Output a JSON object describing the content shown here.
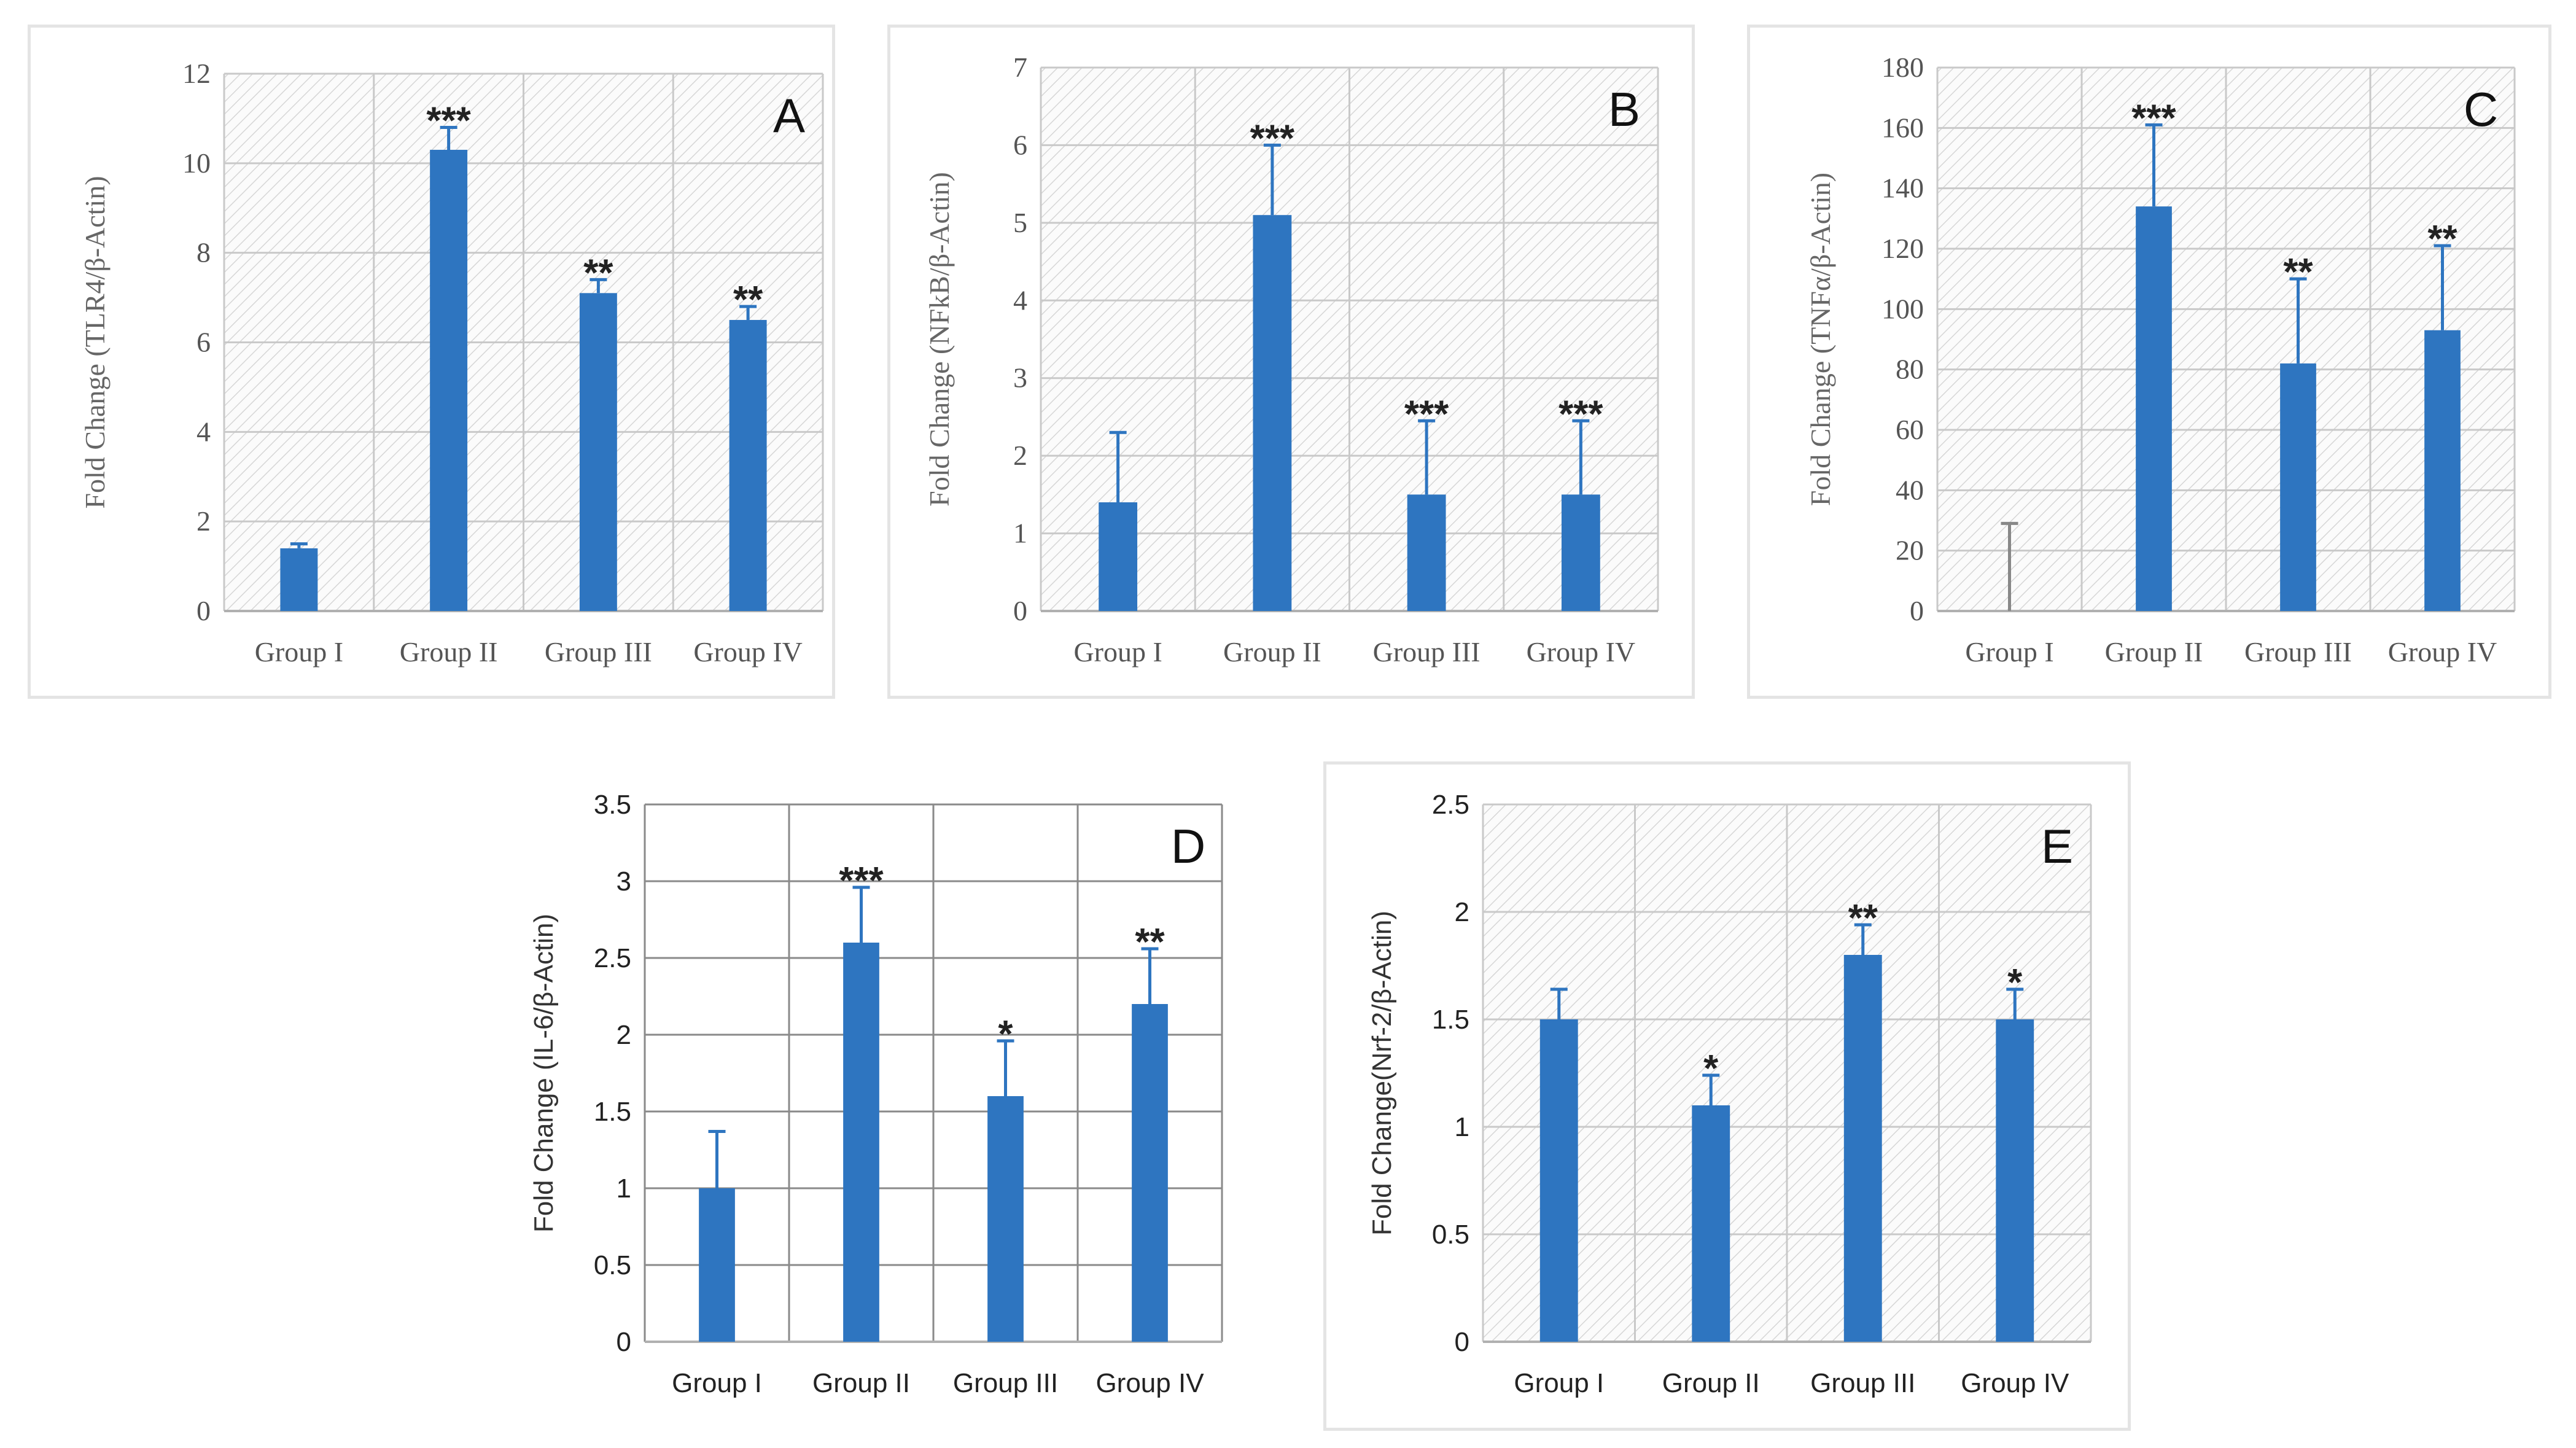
{
  "chart_data": [
    {
      "id": "A",
      "type": "bar",
      "title": "A",
      "categories": [
        "Group I",
        "Group II",
        "Group III",
        "Group IV"
      ],
      "values": [
        1.4,
        10.3,
        7.1,
        6.5
      ],
      "errors": [
        0.1,
        0.5,
        0.3,
        0.3
      ],
      "significance": [
        "",
        "***",
        "**",
        "**"
      ],
      "xlabel": "",
      "ylabel": "Fold Change (TLR4/β-Actin)",
      "ylim": [
        0,
        12
      ],
      "yticks": [
        "0",
        "2",
        "4",
        "6",
        "8",
        "10",
        "12"
      ],
      "grid": true
    },
    {
      "id": "B",
      "type": "bar",
      "title": "B",
      "categories": [
        "Group I",
        "Group II",
        "Group III",
        "Group IV"
      ],
      "values": [
        1.4,
        5.1,
        1.5,
        1.5
      ],
      "errors": [
        0.9,
        0.9,
        0.95,
        0.95
      ],
      "significance": [
        "",
        "***",
        "***",
        "***"
      ],
      "xlabel": "",
      "ylabel": "Fold Change (NFkB/β-Actin)",
      "ylim": [
        0,
        7
      ],
      "yticks": [
        "0",
        "1",
        "2",
        "3",
        "4",
        "5",
        "6",
        "7"
      ],
      "grid": true
    },
    {
      "id": "C",
      "type": "bar",
      "title": "C",
      "categories": [
        "Group I",
        "Group II",
        "Group III",
        "Group IV"
      ],
      "values": [
        0,
        134,
        82,
        93
      ],
      "errors": [
        29,
        27,
        28,
        28
      ],
      "significance": [
        "",
        "***",
        "**",
        "**"
      ],
      "xlabel": "",
      "ylabel": "Fold Change (TNFα/β-Actin)",
      "ylim": [
        0,
        180
      ],
      "yticks": [
        "0",
        "20",
        "40",
        "60",
        "80",
        "100",
        "120",
        "140",
        "160",
        "180"
      ],
      "grid": true
    },
    {
      "id": "D",
      "type": "bar",
      "title": "D",
      "categories": [
        "Group I",
        "Group II",
        "Group III",
        "Group IV"
      ],
      "values": [
        1.0,
        2.6,
        1.6,
        2.2
      ],
      "errors": [
        0.37,
        0.36,
        0.36,
        0.36
      ],
      "significance": [
        "",
        "***",
        "*",
        "**"
      ],
      "xlabel": "",
      "ylabel": "Fold Change (IL-6/β-Actin)",
      "ylim": [
        0,
        3.5
      ],
      "yticks": [
        "0",
        "0.5",
        "1",
        "1.5",
        "2",
        "2.5",
        "3",
        "3.5"
      ],
      "grid": true
    },
    {
      "id": "E",
      "type": "bar",
      "title": "E",
      "categories": [
        "Group I",
        "Group II",
        "Group III",
        "Group IV"
      ],
      "values": [
        1.5,
        1.1,
        1.8,
        1.5
      ],
      "errors": [
        0.14,
        0.14,
        0.14,
        0.14
      ],
      "significance": [
        "",
        "*",
        "**",
        "*"
      ],
      "xlabel": "",
      "ylabel": "Fold Change(Nrf-2/β-Actin)",
      "ylim": [
        0,
        2.5
      ],
      "yticks": [
        "0",
        "0.5",
        "1",
        "1.5",
        "2",
        "2.5"
      ],
      "grid": true
    }
  ],
  "colors": {
    "bar": "#2e75c0",
    "grid": "#c9c9c9"
  }
}
